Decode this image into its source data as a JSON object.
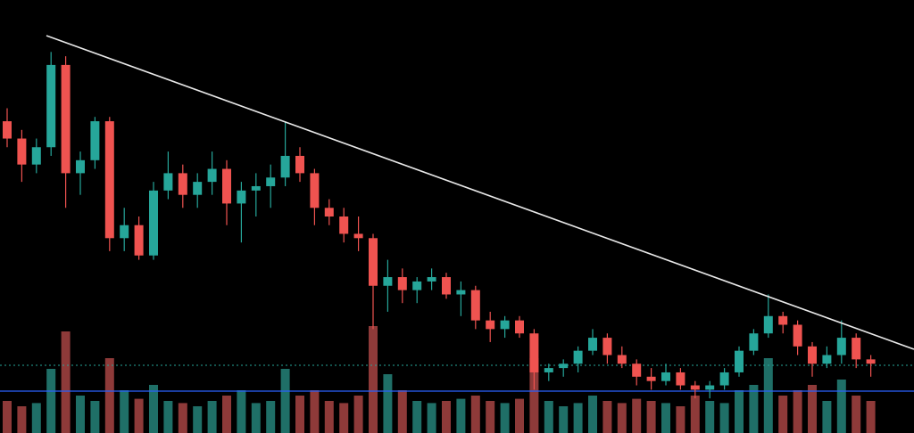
{
  "chart_data": {
    "type": "candlestick",
    "up_color": "#26a69a",
    "down_color": "#ef5350",
    "volume_up_color": "#1f6f67",
    "volume_down_color": "#8e3a39",
    "ylim": [
      0,
      100
    ],
    "volume_ylim": [
      0,
      100
    ],
    "open": [
      72,
      68,
      62,
      66,
      85,
      60,
      63,
      72,
      45,
      48,
      41,
      56,
      60,
      55,
      58,
      61,
      53,
      56,
      57,
      59,
      64,
      60,
      52,
      50,
      46,
      45,
      34,
      36,
      33,
      35,
      36,
      32,
      33,
      26,
      24,
      26,
      23,
      14,
      15,
      16,
      19,
      22,
      18,
      16,
      13,
      12,
      14,
      11,
      10,
      11,
      14,
      19,
      23,
      27,
      25,
      20,
      16,
      18,
      22,
      17
    ],
    "high": [
      75,
      70,
      68,
      88,
      87,
      65,
      73,
      73,
      52,
      50,
      58,
      65,
      62,
      60,
      65,
      63,
      58,
      60,
      62,
      72,
      66,
      61,
      54,
      52,
      50,
      46,
      40,
      38,
      36,
      38,
      37,
      35,
      34,
      28,
      27,
      27,
      24,
      16,
      17,
      20,
      24,
      23,
      20,
      17,
      15,
      16,
      15,
      12,
      12,
      15,
      20,
      24,
      32,
      28,
      26,
      21,
      20,
      26,
      23,
      18
    ],
    "low": [
      66,
      58,
      60,
      64,
      52,
      55,
      61,
      42,
      42,
      40,
      40,
      54,
      52,
      52,
      55,
      48,
      44,
      50,
      52,
      57,
      58,
      48,
      48,
      44,
      42,
      24,
      28,
      30,
      30,
      33,
      31,
      27,
      24,
      21,
      22,
      22,
      10,
      12,
      13,
      14,
      18,
      16,
      15,
      11,
      10,
      11,
      10,
      8,
      8,
      10,
      13,
      18,
      22,
      23,
      18,
      13,
      15,
      16,
      15,
      13
    ],
    "close": [
      68,
      62,
      66,
      85,
      60,
      63,
      72,
      45,
      48,
      41,
      56,
      60,
      55,
      58,
      61,
      53,
      56,
      57,
      59,
      64,
      60,
      52,
      50,
      46,
      45,
      34,
      36,
      33,
      35,
      36,
      32,
      33,
      26,
      24,
      26,
      23,
      14,
      15,
      16,
      19,
      22,
      18,
      16,
      13,
      12,
      14,
      11,
      10,
      11,
      14,
      19,
      23,
      27,
      25,
      20,
      16,
      18,
      22,
      17,
      16
    ],
    "volume": [
      30,
      25,
      28,
      60,
      95,
      35,
      30,
      70,
      40,
      32,
      45,
      30,
      28,
      25,
      30,
      35,
      40,
      28,
      30,
      60,
      35,
      40,
      30,
      28,
      35,
      100,
      55,
      40,
      30,
      28,
      30,
      32,
      35,
      30,
      28,
      32,
      70,
      30,
      25,
      28,
      35,
      30,
      28,
      32,
      30,
      28,
      25,
      35,
      30,
      28,
      40,
      45,
      70,
      35,
      40,
      45,
      30,
      50,
      35,
      30
    ]
  }
}
